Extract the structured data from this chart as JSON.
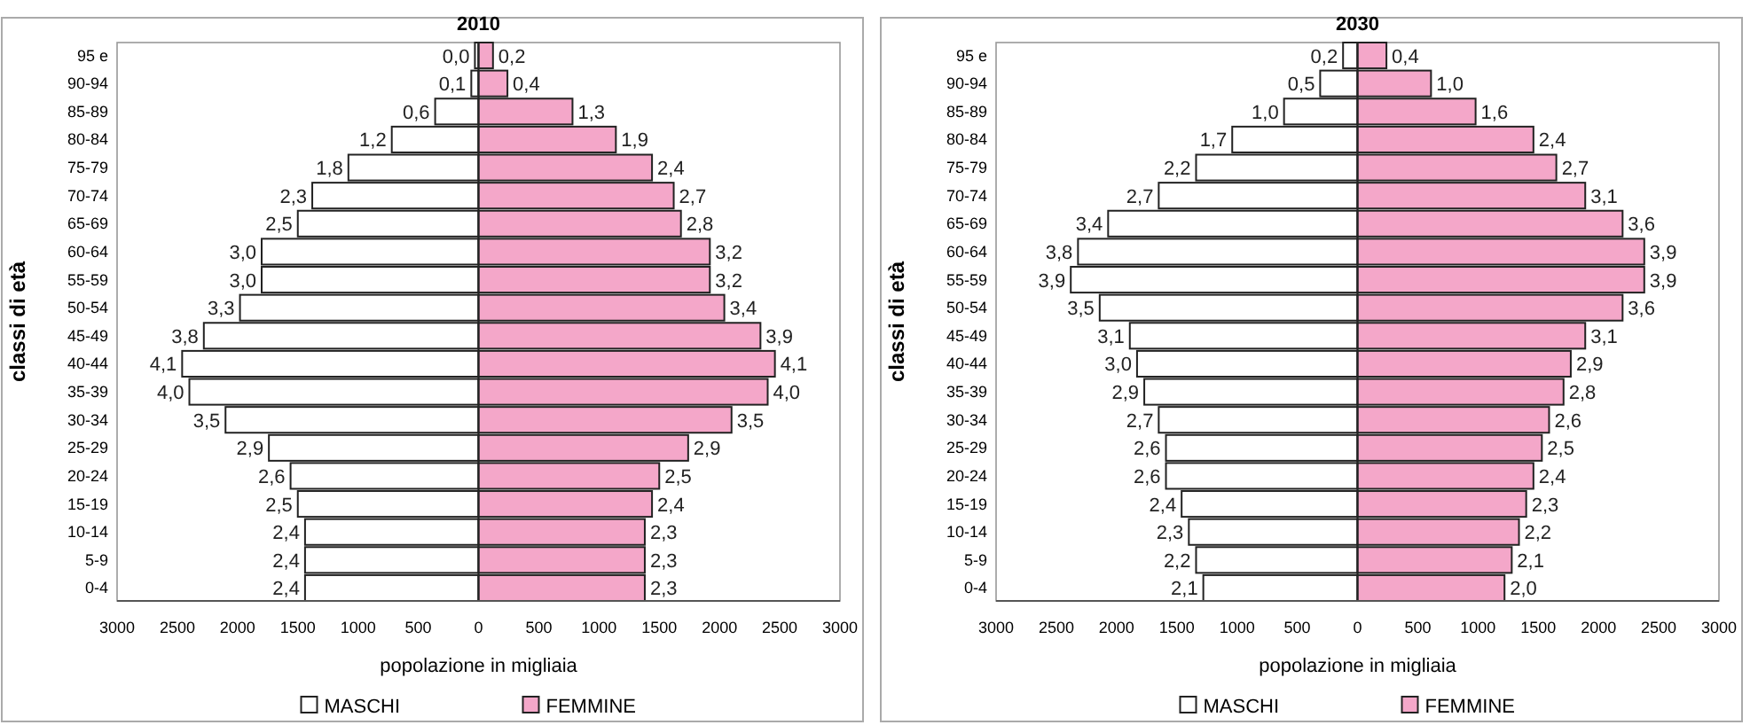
{
  "chart_data": [
    {
      "type": "bar",
      "orientation": "horizontal",
      "stacked": true,
      "title": "2010",
      "xlabel": "popolazione in migliaia",
      "ylabel": "classi di età",
      "categories": [
        "95 e",
        "90-94",
        "85-89",
        "80-84",
        "75-79",
        "70-74",
        "65-69",
        "60-64",
        "55-59",
        "50-54",
        "45-49",
        "40-44",
        "35-39",
        "30-34",
        "25-29",
        "20-24",
        "15-19",
        "10-14",
        "5-9",
        "0-4"
      ],
      "xlim": [
        -3000,
        3000
      ],
      "xticks": [
        {
          "value": -3000,
          "label": "3000"
        },
        {
          "value": -2500,
          "label": "2500"
        },
        {
          "value": -2000,
          "label": "2000"
        },
        {
          "value": -1500,
          "label": "1500"
        },
        {
          "value": -1000,
          "label": "1000"
        },
        {
          "value": -500,
          "label": "500"
        },
        0,
        500,
        1000,
        1500,
        2000,
        2500,
        3000
      ],
      "legend": "bottom",
      "series": [
        {
          "name": "MASCHI",
          "color": "#ffffff",
          "values": [
            -30,
            -60,
            -360,
            -720,
            -1080,
            -1380,
            -1500,
            -1800,
            -1800,
            -1980,
            -2280,
            -2460,
            -2400,
            -2100,
            -1740,
            -1560,
            -1500,
            -1440,
            -1440,
            -1440
          ]
        },
        {
          "name": "FEMMINE",
          "color": "#f4a7c9",
          "values": [
            120,
            240,
            780,
            1140,
            1440,
            1620,
            1680,
            1920,
            1920,
            2040,
            2340,
            2460,
            2400,
            2100,
            1740,
            1500,
            1440,
            1380,
            1380,
            1380
          ]
        }
      ],
      "annotations": [
        {
          "text": "0,0",
          "x": -30,
          "y": "95 e"
        },
        {
          "text": "0,1",
          "x": -60,
          "y": "90-94"
        },
        {
          "text": "0,6",
          "x": -360,
          "y": "85-89"
        },
        {
          "text": "1,2",
          "x": -720,
          "y": "80-84"
        },
        {
          "text": "1,8",
          "x": -1080,
          "y": "75-79"
        },
        {
          "text": "2,3",
          "x": -1380,
          "y": "70-74"
        },
        {
          "text": "2,5",
          "x": -1500,
          "y": "65-69"
        },
        {
          "text": "3,0",
          "x": -1800,
          "y": "60-64"
        },
        {
          "text": "3,0",
          "x": -1800,
          "y": "55-59"
        },
        {
          "text": "3,3",
          "x": -1980,
          "y": "50-54"
        },
        {
          "text": "3,8",
          "x": -2280,
          "y": "45-49"
        },
        {
          "text": "4,1",
          "x": -2460,
          "y": "40-44"
        },
        {
          "text": "4,0",
          "x": -2400,
          "y": "35-39"
        },
        {
          "text": "3,5",
          "x": -2100,
          "y": "30-34"
        },
        {
          "text": "2,9",
          "x": -1740,
          "y": "25-29"
        },
        {
          "text": "2,6",
          "x": -1560,
          "y": "20-24"
        },
        {
          "text": "2,5",
          "x": -1500,
          "y": "15-19"
        },
        {
          "text": "2,4",
          "x": -1440,
          "y": "10-14"
        },
        {
          "text": "2,4",
          "x": -1440,
          "y": "5-9"
        },
        {
          "text": "2,4",
          "x": -1440,
          "y": "0-4"
        },
        {
          "text": "0,2",
          "x": 120,
          "y": "95 e"
        },
        {
          "text": "0,4",
          "x": 240,
          "y": "90-94"
        },
        {
          "text": "1,3",
          "x": 780,
          "y": "85-89"
        },
        {
          "text": "1,9",
          "x": 1140,
          "y": "80-84"
        },
        {
          "text": "2,4",
          "x": 1440,
          "y": "75-79"
        },
        {
          "text": "2,7",
          "x": 1620,
          "y": "70-74"
        },
        {
          "text": "2,8",
          "x": 1680,
          "y": "65-69"
        },
        {
          "text": "3,2",
          "x": 1920,
          "y": "60-64"
        },
        {
          "text": "3,2",
          "x": 1920,
          "y": "55-59"
        },
        {
          "text": "3,4",
          "x": 2040,
          "y": "50-54"
        },
        {
          "text": "3,9",
          "x": 2340,
          "y": "45-49"
        },
        {
          "text": "4,1",
          "x": 2460,
          "y": "40-44"
        },
        {
          "text": "4,0",
          "x": 2400,
          "y": "35-39"
        },
        {
          "text": "3,5",
          "x": 2100,
          "y": "30-34"
        },
        {
          "text": "2,9",
          "x": 1740,
          "y": "25-29"
        },
        {
          "text": "2,5",
          "x": 1500,
          "y": "20-24"
        },
        {
          "text": "2,4",
          "x": 1440,
          "y": "15-19"
        },
        {
          "text": "2,3",
          "x": 1380,
          "y": "10-14"
        },
        {
          "text": "2,3",
          "x": 1380,
          "y": "5-9"
        },
        {
          "text": "2,3",
          "x": 1380,
          "y": "0-4"
        }
      ]
    },
    {
      "type": "bar",
      "orientation": "horizontal",
      "stacked": true,
      "title": "2030",
      "xlabel": "popolazione in migliaia",
      "ylabel": "classi di età",
      "categories": [
        "95 e",
        "90-94",
        "85-89",
        "80-84",
        "75-79",
        "70-74",
        "65-69",
        "60-64",
        "55-59",
        "50-54",
        "45-49",
        "40-44",
        "35-39",
        "30-34",
        "25-29",
        "20-24",
        "15-19",
        "10-14",
        "5-9",
        "0-4"
      ],
      "xlim": [
        -3000,
        3000
      ],
      "xticks": [
        {
          "value": -3000,
          "label": "3000"
        },
        {
          "value": -2500,
          "label": "2500"
        },
        {
          "value": -2000,
          "label": "2000"
        },
        {
          "value": -1500,
          "label": "1500"
        },
        {
          "value": -1000,
          "label": "1000"
        },
        {
          "value": -500,
          "label": "500"
        },
        0,
        500,
        1000,
        1500,
        2000,
        2500,
        3000
      ],
      "legend": "bottom",
      "series": [
        {
          "name": "MASCHI",
          "color": "#ffffff",
          "values": [
            -120,
            -310,
            -610,
            -1040,
            -1340,
            -1650,
            -2070,
            -2320,
            -2380,
            -2140,
            -1890,
            -1830,
            -1770,
            -1650,
            -1590,
            -1590,
            -1460,
            -1400,
            -1340,
            -1280
          ]
        },
        {
          "name": "FEMMINE",
          "color": "#f4a7c9",
          "values": [
            240,
            610,
            980,
            1460,
            1650,
            1890,
            2200,
            2380,
            2380,
            2200,
            1890,
            1770,
            1710,
            1590,
            1530,
            1460,
            1400,
            1340,
            1280,
            1220
          ]
        }
      ],
      "annotations": [
        {
          "text": "0,2",
          "x": -120,
          "y": "95 e"
        },
        {
          "text": "0,5",
          "x": -310,
          "y": "90-94"
        },
        {
          "text": "1,0",
          "x": -610,
          "y": "85-89"
        },
        {
          "text": "1,7",
          "x": -1040,
          "y": "80-84"
        },
        {
          "text": "2,2",
          "x": -1340,
          "y": "75-79"
        },
        {
          "text": "2,7",
          "x": -1650,
          "y": "70-74"
        },
        {
          "text": "3,4",
          "x": -2070,
          "y": "65-69"
        },
        {
          "text": "3,8",
          "x": -2320,
          "y": "60-64"
        },
        {
          "text": "3,9",
          "x": -2380,
          "y": "55-59"
        },
        {
          "text": "3,5",
          "x": -2140,
          "y": "50-54"
        },
        {
          "text": "3,1",
          "x": -1890,
          "y": "45-49"
        },
        {
          "text": "3,0",
          "x": -1830,
          "y": "40-44"
        },
        {
          "text": "2,9",
          "x": -1770,
          "y": "35-39"
        },
        {
          "text": "2,7",
          "x": -1650,
          "y": "30-34"
        },
        {
          "text": "2,6",
          "x": -1590,
          "y": "25-29"
        },
        {
          "text": "2,6",
          "x": -1590,
          "y": "20-24"
        },
        {
          "text": "2,4",
          "x": -1460,
          "y": "15-19"
        },
        {
          "text": "2,3",
          "x": -1400,
          "y": "10-14"
        },
        {
          "text": "2,2",
          "x": -1340,
          "y": "5-9"
        },
        {
          "text": "2,1",
          "x": -1280,
          "y": "0-4"
        },
        {
          "text": "0,4",
          "x": 240,
          "y": "95 e"
        },
        {
          "text": "1,0",
          "x": 610,
          "y": "90-94"
        },
        {
          "text": "1,6",
          "x": 980,
          "y": "85-89"
        },
        {
          "text": "2,4",
          "x": 1460,
          "y": "80-84"
        },
        {
          "text": "2,7",
          "x": 1650,
          "y": "75-79"
        },
        {
          "text": "3,1",
          "x": 1890,
          "y": "70-74"
        },
        {
          "text": "3,6",
          "x": 2200,
          "y": "65-69"
        },
        {
          "text": "3,9",
          "x": 2380,
          "y": "60-64"
        },
        {
          "text": "3,9",
          "x": 2380,
          "y": "55-59"
        },
        {
          "text": "3,6",
          "x": 2200,
          "y": "50-54"
        },
        {
          "text": "3,1",
          "x": 1890,
          "y": "45-49"
        },
        {
          "text": "2,9",
          "x": 1770,
          "y": "40-44"
        },
        {
          "text": "2,8",
          "x": 1710,
          "y": "35-39"
        },
        {
          "text": "2,6",
          "x": 1590,
          "y": "30-34"
        },
        {
          "text": "2,5",
          "x": 1530,
          "y": "25-29"
        },
        {
          "text": "2,4",
          "x": 1460,
          "y": "20-24"
        },
        {
          "text": "2,3",
          "x": 1400,
          "y": "15-19"
        },
        {
          "text": "2,2",
          "x": 1340,
          "y": "10-14"
        },
        {
          "text": "2,1",
          "x": 1280,
          "y": "5-9"
        },
        {
          "text": "2,0",
          "x": 1220,
          "y": "0-4"
        }
      ]
    }
  ]
}
